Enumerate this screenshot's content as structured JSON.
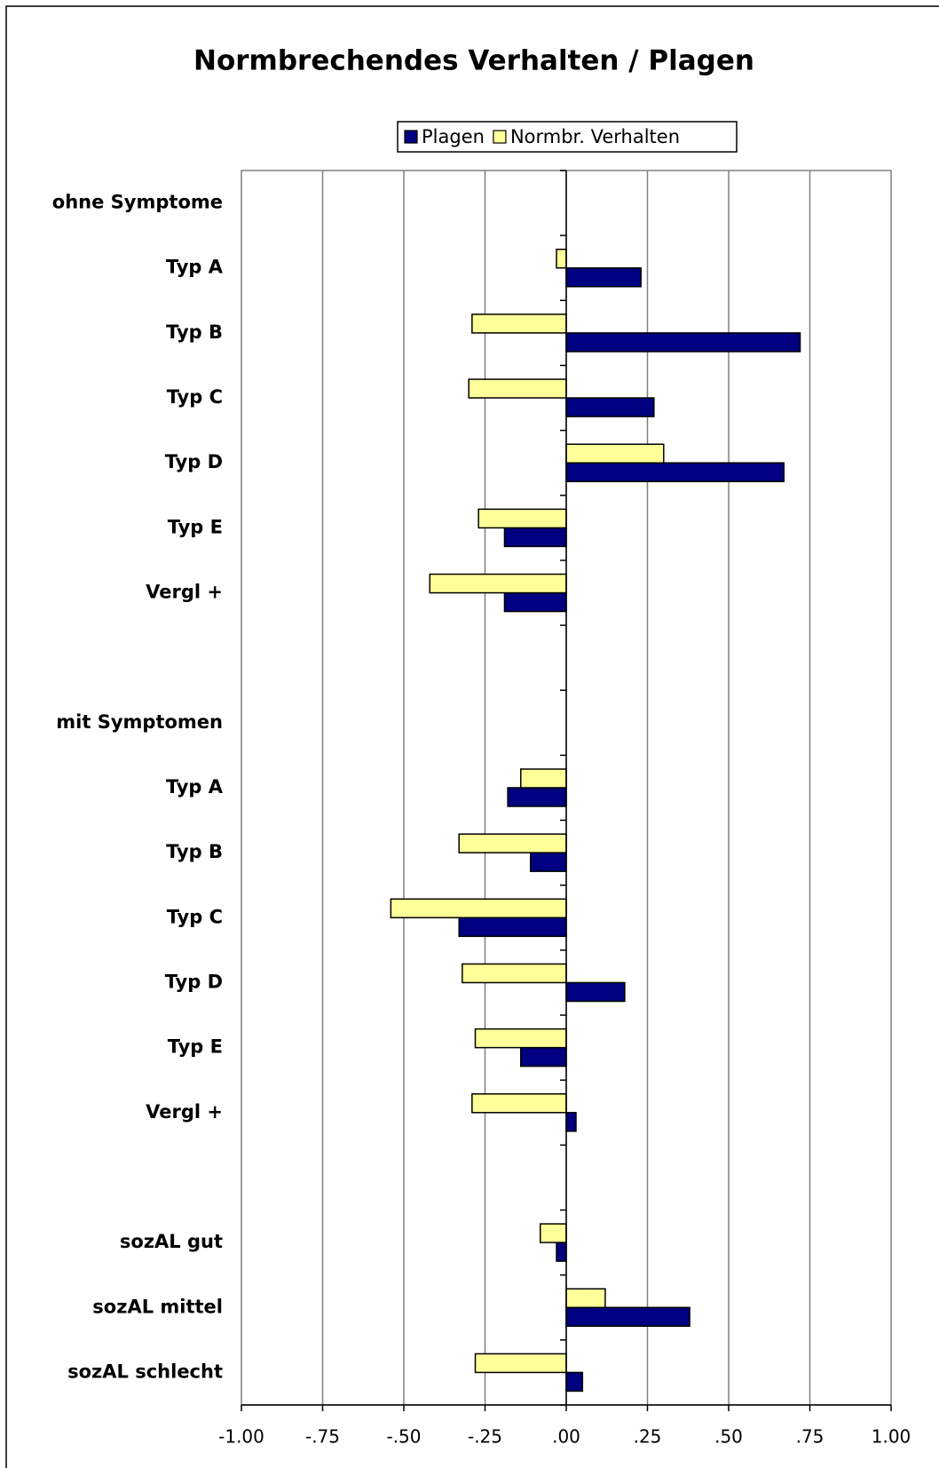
{
  "chart_data": {
    "type": "barh",
    "title": "Normbrechendes Verhalten / Plagen",
    "categories": [
      "ohne Symptome",
      "Typ A",
      "Typ B",
      "Typ C",
      "Typ D",
      "Typ E",
      "Vergl +",
      null,
      "mit Symptomen",
      "Typ A",
      "Typ B",
      "Typ C",
      "Typ D",
      "Typ E",
      "Vergl +",
      null,
      "sozAL gut",
      "sozAL mittel",
      "sozAL schlecht"
    ],
    "series": [
      {
        "name": "Plagen",
        "color": "#000080",
        "values": [
          null,
          0.23,
          0.72,
          0.27,
          0.67,
          -0.19,
          -0.19,
          null,
          null,
          -0.18,
          -0.11,
          -0.33,
          0.18,
          -0.14,
          0.03,
          null,
          -0.03,
          0.38,
          0.05
        ]
      },
      {
        "name": "Normbr. Verhalten",
        "color": "#ffff99",
        "values": [
          null,
          -0.03,
          -0.29,
          -0.3,
          0.3,
          -0.27,
          -0.42,
          null,
          null,
          -0.14,
          -0.33,
          -0.54,
          -0.32,
          -0.28,
          -0.29,
          null,
          -0.08,
          0.12,
          -0.28
        ]
      }
    ],
    "xlim": [
      -1,
      1
    ],
    "xticks": [
      {
        "value": -1,
        "label": "-1.00"
      },
      {
        "value": -0.75,
        "label": "-.75"
      },
      {
        "value": -0.5,
        "label": "-.50"
      },
      {
        "value": -0.25,
        "label": "-.25"
      },
      {
        "value": 0,
        "label": ".00"
      },
      {
        "value": 0.25,
        "label": ".25"
      },
      {
        "value": 0.5,
        "label": ".50"
      },
      {
        "value": 0.75,
        "label": ".75"
      },
      {
        "value": 1,
        "label": "1.00"
      }
    ],
    "grid": true,
    "legend": "top"
  }
}
